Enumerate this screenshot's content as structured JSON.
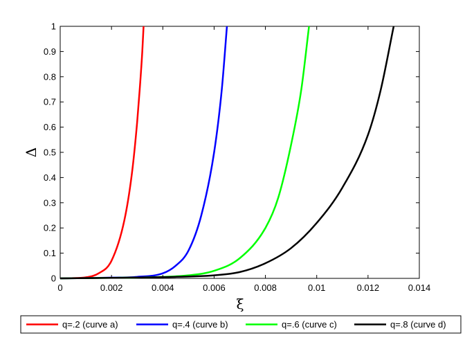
{
  "chart_data": {
    "type": "line",
    "xlabel": "ξ",
    "ylabel": "Δ",
    "xlim": [
      0,
      0.014
    ],
    "ylim": [
      0,
      1
    ],
    "x_ticks": [
      "0",
      "0.002",
      "0.004",
      "0.006",
      "0.008",
      "0.01",
      "0.012",
      "0.014"
    ],
    "y_ticks": [
      "0",
      "0.1",
      "0.2",
      "0.3",
      "0.4",
      "0.5",
      "0.6",
      "0.7",
      "0.8",
      "0.9",
      "1"
    ],
    "grid": false,
    "legend_position": "bottom",
    "series": [
      {
        "name": "q=.2 (curve a)",
        "color": "#ff0000",
        "x": [
          0,
          0.0005,
          0.001,
          0.0015,
          0.002,
          0.0025,
          0.0028,
          0.003,
          0.0031,
          0.0032,
          0.00325
        ],
        "y": [
          0,
          0.001,
          0.004,
          0.02,
          0.07,
          0.23,
          0.42,
          0.62,
          0.75,
          0.9,
          1.0
        ]
      },
      {
        "name": "q=.4 (curve b)",
        "color": "#0000ff",
        "x": [
          0,
          0.001,
          0.002,
          0.003,
          0.004,
          0.0045,
          0.005,
          0.0055,
          0.006,
          0.0063,
          0.0065
        ],
        "y": [
          0,
          0.001,
          0.003,
          0.006,
          0.02,
          0.05,
          0.11,
          0.25,
          0.5,
          0.75,
          1.0
        ]
      },
      {
        "name": "q=.6 (curve c)",
        "color": "#00ff00",
        "x": [
          0,
          0.002,
          0.004,
          0.005,
          0.006,
          0.007,
          0.008,
          0.0085,
          0.009,
          0.0094,
          0.0097
        ],
        "y": [
          0,
          0.002,
          0.006,
          0.012,
          0.03,
          0.08,
          0.2,
          0.32,
          0.53,
          0.75,
          1.0
        ]
      },
      {
        "name": "q=.8 (curve d)",
        "color": "#000000",
        "x": [
          0,
          0.002,
          0.004,
          0.006,
          0.007,
          0.008,
          0.009,
          0.01,
          0.011,
          0.012,
          0.0125,
          0.013
        ],
        "y": [
          0,
          0.002,
          0.005,
          0.012,
          0.025,
          0.06,
          0.12,
          0.22,
          0.36,
          0.57,
          0.75,
          1.0
        ]
      }
    ]
  }
}
